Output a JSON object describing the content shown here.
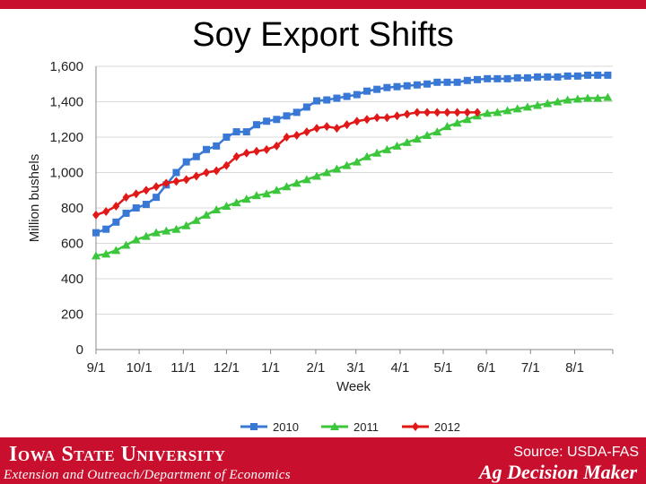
{
  "slide": {
    "title": "Soy Export Shifts"
  },
  "footer": {
    "university": "Iowa State University",
    "department": "Extension and Outreach/Department of Economics",
    "source": "Source: USDA-FAS",
    "brand": "Ag Decision Maker",
    "bar_color": "#c8102e"
  },
  "chart_data": {
    "type": "line",
    "xlabel": "Week",
    "ylabel": "Million bushels",
    "ylim": [
      0,
      1600
    ],
    "yticks": [
      0,
      200,
      400,
      600,
      800,
      1000,
      1200,
      1400,
      1600
    ],
    "ytick_labels": [
      "0",
      "200",
      "400",
      "600",
      "800",
      "1,000",
      "1,200",
      "1,400",
      "1,600"
    ],
    "xtick_labels": [
      "9/1",
      "10/1",
      "11/1",
      "12/1",
      "1/1",
      "2/1",
      "3/1",
      "4/1",
      "5/1",
      "6/1",
      "7/1",
      "8/1"
    ],
    "xtick_weeks": [
      0,
      4.3,
      8.7,
      13,
      17.4,
      21.9,
      25.9,
      30.3,
      34.6,
      38.9,
      43.3,
      47.7
    ],
    "grid": true,
    "legend_position": "bottom",
    "series": [
      {
        "name": "2010",
        "color": "#3a78d6",
        "marker": "square",
        "weeks": [
          0,
          1,
          2,
          3,
          4,
          5,
          6,
          7,
          8,
          9,
          10,
          11,
          12,
          13,
          14,
          15,
          16,
          17,
          18,
          19,
          20,
          21,
          22,
          23,
          24,
          25,
          26,
          27,
          28,
          29,
          30,
          31,
          32,
          33,
          34,
          35,
          36,
          37,
          38,
          39,
          40,
          41,
          42,
          43,
          44,
          45,
          46,
          47,
          48,
          49,
          50,
          51
        ],
        "values": [
          660,
          680,
          720,
          770,
          800,
          820,
          860,
          930,
          1000,
          1060,
          1090,
          1130,
          1150,
          1200,
          1230,
          1230,
          1270,
          1290,
          1300,
          1320,
          1340,
          1370,
          1405,
          1410,
          1420,
          1430,
          1440,
          1460,
          1470,
          1480,
          1485,
          1490,
          1495,
          1500,
          1510,
          1510,
          1510,
          1520,
          1525,
          1530,
          1530,
          1530,
          1535,
          1535,
          1540,
          1540,
          1540,
          1545,
          1545,
          1550,
          1550,
          1550
        ]
      },
      {
        "name": "2011",
        "color": "#3cc63c",
        "marker": "triangle",
        "weeks": [
          0,
          1,
          2,
          3,
          4,
          5,
          6,
          7,
          8,
          9,
          10,
          11,
          12,
          13,
          14,
          15,
          16,
          17,
          18,
          19,
          20,
          21,
          22,
          23,
          24,
          25,
          26,
          27,
          28,
          29,
          30,
          31,
          32,
          33,
          34,
          35,
          36,
          37,
          38,
          39,
          40,
          41,
          42,
          43,
          44,
          45,
          46,
          47,
          48,
          49,
          50,
          51
        ],
        "values": [
          530,
          540,
          560,
          590,
          620,
          640,
          660,
          670,
          680,
          700,
          730,
          760,
          790,
          810,
          830,
          850,
          870,
          880,
          900,
          920,
          940,
          960,
          980,
          1000,
          1020,
          1040,
          1060,
          1090,
          1110,
          1130,
          1150,
          1170,
          1190,
          1210,
          1230,
          1260,
          1280,
          1300,
          1320,
          1335,
          1340,
          1350,
          1360,
          1370,
          1380,
          1390,
          1400,
          1410,
          1415,
          1420,
          1420,
          1425
        ]
      },
      {
        "name": "2012",
        "color": "#e01818",
        "marker": "diamond",
        "weeks": [
          0,
          1,
          2,
          3,
          4,
          5,
          6,
          7,
          8,
          9,
          10,
          11,
          12,
          13,
          14,
          15,
          16,
          17,
          18,
          19,
          20,
          21,
          22,
          23,
          24,
          25,
          26,
          27,
          28,
          29,
          30,
          31,
          32,
          33,
          34,
          35,
          36,
          37,
          38
        ],
        "values": [
          760,
          780,
          810,
          860,
          880,
          900,
          920,
          940,
          950,
          960,
          980,
          1000,
          1010,
          1040,
          1090,
          1110,
          1120,
          1130,
          1150,
          1200,
          1210,
          1230,
          1250,
          1260,
          1250,
          1270,
          1290,
          1300,
          1310,
          1310,
          1320,
          1330,
          1340,
          1340,
          1340,
          1340,
          1340,
          1340,
          1340
        ]
      }
    ]
  }
}
